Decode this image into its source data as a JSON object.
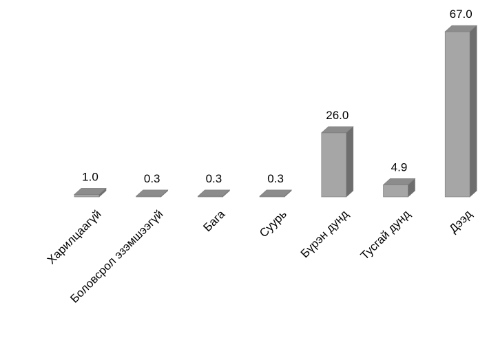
{
  "chart_data": {
    "type": "bar",
    "categories": [
      "Харилцаагүй",
      "Боловсрол эзэмшээгүй",
      "Бага",
      "Суурь",
      "Бүрэн дунд",
      "Тусгай дунд",
      "Дээд"
    ],
    "values": [
      1.0,
      0.3,
      0.3,
      0.3,
      26.0,
      4.9,
      67.0
    ],
    "value_labels": [
      "1.0",
      "0.3",
      "0.3",
      "0.3",
      "26.0",
      "4.9",
      "67.0"
    ],
    "ylim": [
      0,
      67
    ],
    "three_d": true,
    "grid": false,
    "legend": "none",
    "colors": {
      "front": "#a6a6a6",
      "side": "#6e6e6e",
      "top": "#8c8c8c",
      "outline": "#7a7a7a"
    }
  }
}
